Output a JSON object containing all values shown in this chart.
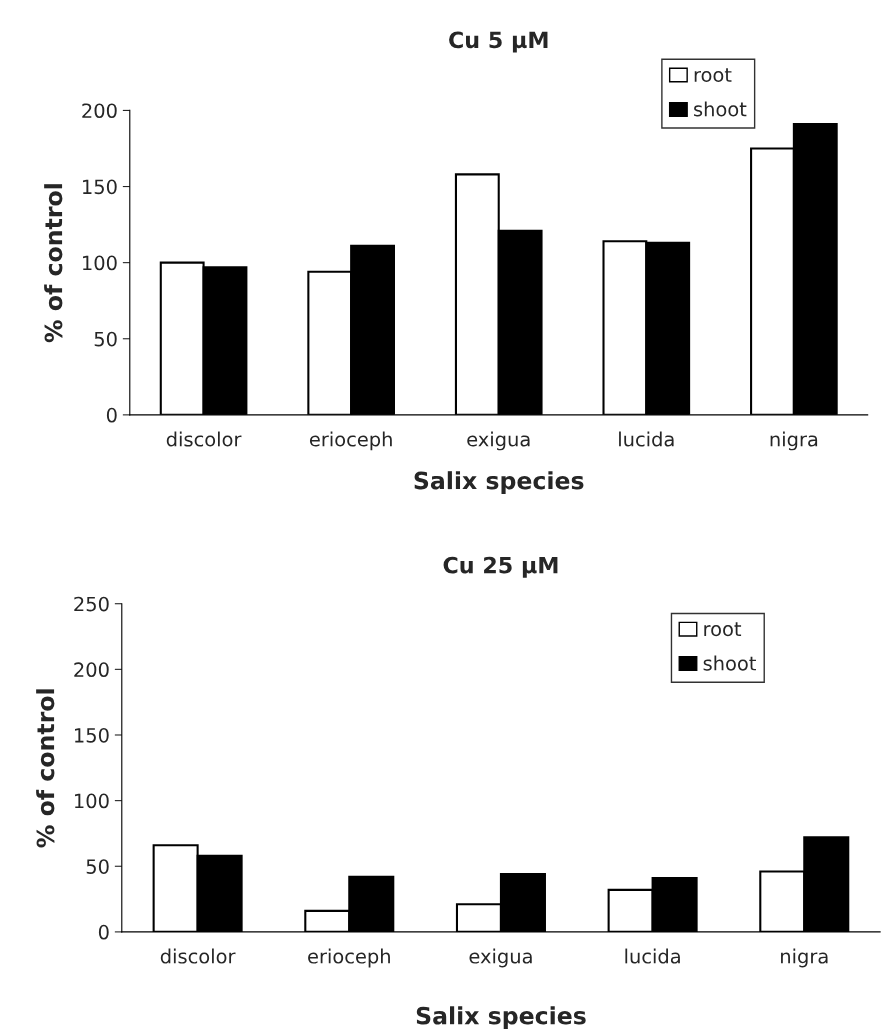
{
  "chart_data": [
    {
      "type": "bar",
      "title": "Cu 5 μM",
      "xlabel": "Salix species",
      "ylabel": "% of control",
      "categories": [
        "discolor",
        "erioceph",
        "exigua",
        "lucida",
        "nigra"
      ],
      "series": [
        {
          "name": "root",
          "color": "#ffffff",
          "values": [
            100,
            94,
            158,
            114,
            175
          ]
        },
        {
          "name": "shoot",
          "color": "#000000",
          "values": [
            97,
            111,
            121,
            113,
            191
          ]
        }
      ],
      "ylim": [
        0,
        200
      ],
      "yticks": [
        0,
        50,
        100,
        150,
        200
      ],
      "grid": false,
      "legend": "top right"
    },
    {
      "type": "bar",
      "title": "Cu 25 μM",
      "xlabel": "Salix species",
      "ylabel": "% of control",
      "categories": [
        "discolor",
        "erioceph",
        "exigua",
        "lucida",
        "nigra"
      ],
      "series": [
        {
          "name": "root",
          "color": "#ffffff",
          "values": [
            66,
            16,
            21,
            32,
            46
          ]
        },
        {
          "name": "shoot",
          "color": "#000000",
          "values": [
            58,
            42,
            44,
            41,
            72
          ]
        }
      ],
      "ylim": [
        0,
        250
      ],
      "yticks": [
        0,
        50,
        100,
        150,
        200,
        250
      ],
      "grid": false,
      "legend": "top right"
    }
  ]
}
